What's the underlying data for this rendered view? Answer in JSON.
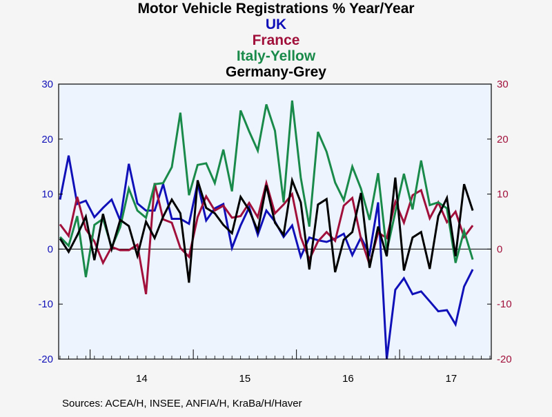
{
  "chart_data": {
    "type": "line",
    "title_lines": [
      {
        "text": "Motor Vehicle Registrations % Year/Year",
        "color": "#000000"
      },
      {
        "text": "UK",
        "color": "#1010b8"
      },
      {
        "text": "France",
        "color": "#a0103a"
      },
      {
        "text": "Italy-Yellow",
        "color": "#1a8a4a"
      },
      {
        "text": "Germany-Grey",
        "color": "#000000"
      }
    ],
    "x_axis": {
      "start_month": "2013-09",
      "end_month": "2017-11",
      "year_labels": [
        {
          "label": "14",
          "month": "2014-07"
        },
        {
          "label": "15",
          "month": "2015-07"
        },
        {
          "label": "16",
          "month": "2016-07"
        },
        {
          "label": "17",
          "month": "2017-07"
        }
      ]
    },
    "y_left": {
      "min": -20,
      "max": 30,
      "ticks": [
        -20,
        -10,
        0,
        10,
        20,
        30
      ],
      "color": "#1010b8"
    },
    "y_right": {
      "min": -20,
      "max": 30,
      "ticks": [
        -20,
        -10,
        0,
        10,
        20,
        30
      ],
      "color": "#a0103a"
    },
    "colors": {
      "plot_bg": "#eef4fe",
      "page_bg": "#f5f5f5",
      "frame": "#000000"
    },
    "series": [
      {
        "key": "uk",
        "color": "#1010b8",
        "values": [
          9,
          17,
          8.2,
          8.8,
          5.8,
          7.5,
          9,
          5.2,
          15.5,
          8.3,
          7,
          7,
          11.8,
          5.5,
          5.5,
          4.6,
          12,
          5.2,
          7.4,
          8.2,
          0.2,
          4.3,
          7.6,
          2.6,
          7,
          5,
          2.2,
          4.3,
          -1.4,
          2.1,
          1.6,
          1.3,
          1.9,
          2.8,
          -1.1,
          2.1,
          -0.9,
          8.5,
          -20,
          -7.4,
          -5.3,
          -8.2,
          -7.7,
          -9.5,
          -11.3,
          -11.1,
          -13.7,
          -6.8,
          -3.7
        ]
      },
      {
        "key": "france",
        "color": "#a0103a",
        "values": [
          4.5,
          2.4,
          9.5,
          3.6,
          1.4,
          -2.5,
          0.4,
          -0.2,
          -0.2,
          0.8,
          -8.2,
          12,
          5.4,
          4.8,
          0.2,
          -1.4,
          5.8,
          9.6,
          7,
          7.9,
          5.7,
          6,
          8.4,
          5.8,
          12,
          6.5,
          8.1,
          10,
          2.2,
          -1.9,
          1.4,
          3.1,
          1.5,
          7.9,
          9.3,
          1.9,
          -2.8,
          3,
          2,
          8.6,
          4.8,
          9.8,
          10.7,
          5.6,
          8.5,
          4.9,
          6.8,
          2.2,
          4.3
        ]
      },
      {
        "key": "italy",
        "color": "#1a8a4a",
        "values": [
          2.2,
          0.6,
          6,
          -5.1,
          4.4,
          5.5,
          0.3,
          4,
          11,
          7,
          5.7,
          11.8,
          12,
          14.9,
          24.8,
          9.8,
          15.3,
          15.6,
          12,
          18.1,
          10.5,
          25.2,
          21.4,
          17.9,
          26.3,
          21.5,
          8.5,
          27,
          13,
          4.1,
          21.3,
          17.7,
          12.1,
          8.9,
          15,
          11,
          5.3,
          13.8,
          -0.4,
          6.7,
          13.7,
          7.2,
          16.1,
          8,
          8.5,
          7.4,
          -2.5,
          3.3,
          -1.9
        ]
      },
      {
        "key": "germany",
        "color": "#000000",
        "values": [
          1.9,
          -0.5,
          2.5,
          5.9,
          -2,
          6.4,
          0,
          5.3,
          4.2,
          -1.2,
          5,
          2,
          5.9,
          9,
          6.5,
          -6.1,
          12.5,
          7.5,
          6.5,
          4.4,
          2.9,
          9.5,
          7.1,
          3.3,
          11.6,
          4.8,
          2.6,
          12.5,
          8.5,
          -3.7,
          8.1,
          9.1,
          -4.2,
          1.7,
          3.1,
          10.2,
          -3.4,
          4.1,
          -1.3,
          13,
          -3.9,
          2.1,
          3.1,
          -3.6,
          6,
          9.3,
          -1.3,
          11.8,
          7
        ]
      }
    ]
  },
  "source_text": "Sources:  ACEA/H, INSEE, ANFIA/H, KraBa/H/Haver"
}
